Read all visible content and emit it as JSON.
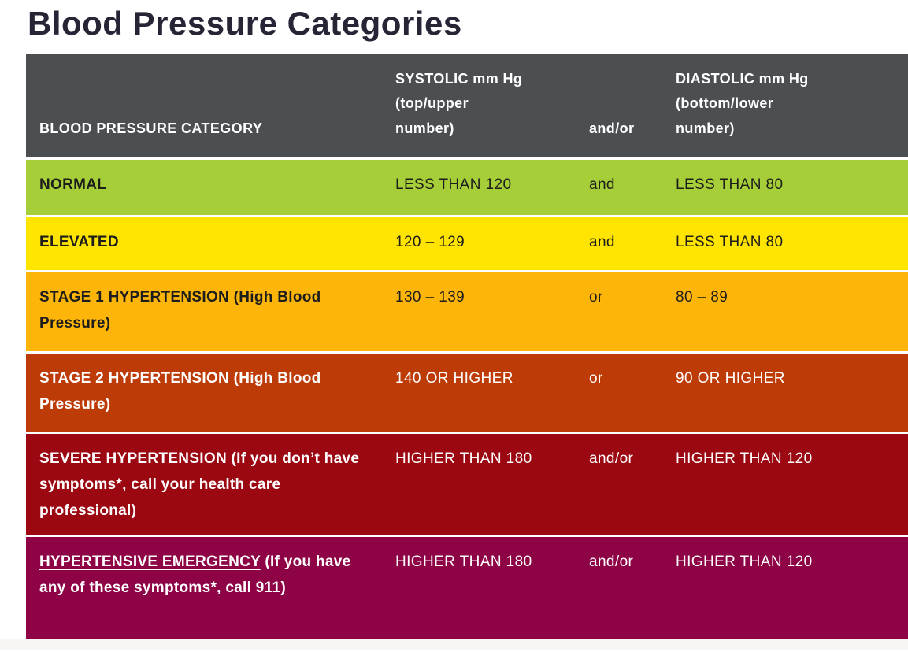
{
  "page": {
    "title": "Blood Pressure Categories"
  },
  "colors": {
    "title_text": "#262535",
    "header_bg": "#4b4f52",
    "header_text": "#ffffff",
    "dark_text": "#1d1d1b",
    "light_text": "#ffffff",
    "row_gap": "#ffffff",
    "footer_strip": "#f7f6f3",
    "normal_green": "#a6ce39",
    "elevated_yellow": "#ffe400",
    "stage1_orange": "#feb50a",
    "stage2_rust": "#bd3b07",
    "severe_red": "#9c0812",
    "emergency_maroon": "#8e0345"
  },
  "table": {
    "header": {
      "category": "BLOOD PRESSURE CATEGORY",
      "systolic": "SYSTOLIC mm Hg\n(top/upper\nnumber)",
      "connector": "and/or",
      "diastolic": "DIASTOLIC mm Hg\n(bottom/lower\nnumber)"
    },
    "rows": [
      {
        "category_main": "NORMAL",
        "category_rest": "",
        "underline_main": false,
        "systolic": "LESS THAN 120",
        "connector": "and",
        "diastolic": "LESS THAN 80",
        "bg": "#a6ce39",
        "text": "#1d1d1b"
      },
      {
        "category_main": "ELEVATED",
        "category_rest": "",
        "underline_main": false,
        "systolic": "120 – 129",
        "connector": "and",
        "diastolic": "LESS THAN 80",
        "bg": "#ffe400",
        "text": "#1d1d1b"
      },
      {
        "category_main": "STAGE 1 HYPERTENSION (High Blood Pressure)",
        "category_rest": "",
        "underline_main": false,
        "systolic": "130 – 139",
        "connector": "or",
        "diastolic": "80 – 89",
        "bg": "#feb50a",
        "text": "#1d1d1b"
      },
      {
        "category_main": "STAGE 2 HYPERTENSION (High Blood Pressure)",
        "category_rest": "",
        "underline_main": false,
        "systolic": "140 OR HIGHER",
        "connector": "or",
        "diastolic": "90 OR HIGHER",
        "bg": "#bd3b07",
        "text": "#ffffff"
      },
      {
        "category_main": "SEVERE HYPERTENSION (If you don’t have symptoms*, call your health care professional)",
        "category_rest": "",
        "underline_main": false,
        "systolic": "HIGHER THAN 180",
        "connector": "and/or",
        "diastolic": "HIGHER THAN 120",
        "bg": "#9c0812",
        "text": "#ffffff"
      },
      {
        "category_main": "HYPERTENSIVE EMERGENCY",
        "category_rest": " (If you have any of these symptoms*, call 911)",
        "underline_main": true,
        "systolic": "HIGHER THAN 180",
        "connector": "and/or",
        "diastolic": "HIGHER THAN 120",
        "bg": "#8e0345",
        "text": "#ffffff"
      }
    ]
  },
  "chart_data": {
    "type": "table",
    "title": "Blood Pressure Categories",
    "columns": [
      "BLOOD PRESSURE CATEGORY",
      "SYSTOLIC mm Hg (top/upper number)",
      "and/or",
      "DIASTOLIC mm Hg (bottom/lower number)"
    ],
    "rows": [
      [
        "NORMAL",
        "LESS THAN 120",
        "and",
        "LESS THAN 80"
      ],
      [
        "ELEVATED",
        "120 – 129",
        "and",
        "LESS THAN 80"
      ],
      [
        "STAGE 1 HYPERTENSION (High Blood Pressure)",
        "130 – 139",
        "or",
        "80 – 89"
      ],
      [
        "STAGE 2 HYPERTENSION (High Blood Pressure)",
        "140 OR HIGHER",
        "or",
        "90 OR HIGHER"
      ],
      [
        "SEVERE HYPERTENSION (If you don’t have symptoms*, call your health care professional)",
        "HIGHER THAN 180",
        "and/or",
        "HIGHER THAN 120"
      ],
      [
        "HYPERTENSIVE EMERGENCY (If you have any of these symptoms*, call 911)",
        "HIGHER THAN 180",
        "and/or",
        "HIGHER THAN 120"
      ]
    ],
    "row_colors": [
      "#a6ce39",
      "#ffe400",
      "#feb50a",
      "#bd3b07",
      "#9c0812",
      "#8e0345"
    ],
    "legend_position": "none",
    "grid": false
  }
}
